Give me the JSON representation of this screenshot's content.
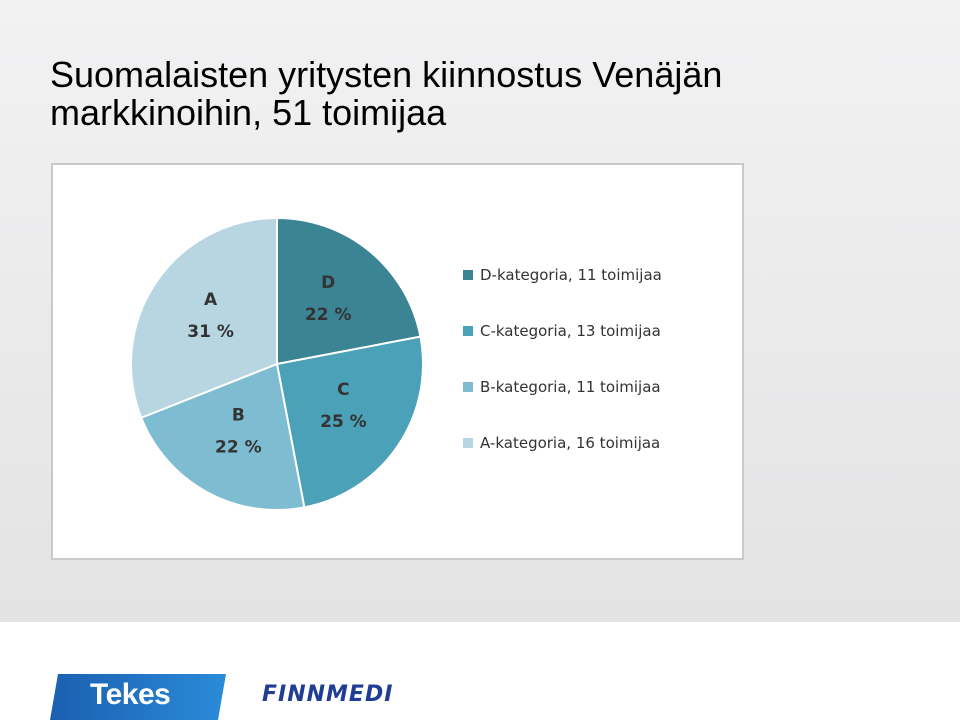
{
  "slide": {
    "title_line1": "Suomalaisten yritysten kiinnostus Venäjän",
    "title_line2": "markkinoihin, 51 toimijaa"
  },
  "chart_data": {
    "type": "pie",
    "slices": [
      {
        "category": "D",
        "value": 22,
        "label": "22 %",
        "legend": "D-kategoria, 11 toimijaa",
        "color": "#3a8494"
      },
      {
        "category": "C",
        "value": 25,
        "label": "25 %",
        "legend": "C-kategoria, 13 toimijaa",
        "color": "#4aa1b8"
      },
      {
        "category": "B",
        "value": 22,
        "label": "22 %",
        "legend": "B-kategoria, 11 toimijaa",
        "color": "#7ebdd1"
      },
      {
        "category": "A",
        "value": 31,
        "label": "31 %",
        "legend": "A-kategoria, 16 toimijaa",
        "color": "#b7d6e1"
      }
    ],
    "legend_position": "right"
  },
  "footer": {
    "tekes_logo_text": "Tekes",
    "finnmedi_logo_text": "FINNMEDI",
    "tekes_color": "#1e6fc0",
    "finnmedi_color": "#1f3d93"
  }
}
